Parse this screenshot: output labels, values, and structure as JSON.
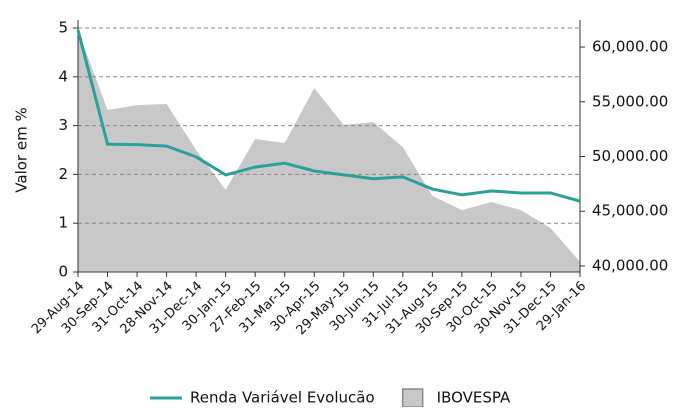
{
  "chart_data": {
    "type": "line-area",
    "y_label": "Valor em %",
    "categories": [
      "29-Aug-14",
      "30-Sep-14",
      "31-Oct-14",
      "28-Nov-14",
      "31-Dec-14",
      "30-Jan-15",
      "27-Feb-15",
      "31-Mar-15",
      "30-Apr-15",
      "29-May-15",
      "30-Jun-15",
      "31-Jul-15",
      "31-Aug-15",
      "30-Sep-15",
      "30-Oct-15",
      "30-Nov-15",
      "31-Dec-15",
      "29-Jan-16"
    ],
    "series": [
      {
        "name": "Renda Variável Evolucão",
        "color": "#2aa198",
        "kind": "line",
        "values": [
          4.96,
          2.62,
          2.61,
          2.58,
          2.36,
          1.99,
          2.15,
          2.23,
          2.07,
          1.99,
          1.91,
          1.95,
          1.7,
          1.58,
          1.66,
          1.62,
          1.62,
          1.45
        ]
      },
      {
        "name": "IBOVESPA",
        "color": "#c8c8c8",
        "kind": "area",
        "axis": "y2",
        "values": [
          61550,
          54250,
          54700,
          54800,
          50600,
          46950,
          51600,
          51230,
          56250,
          52880,
          53150,
          50870,
          46400,
          45100,
          45850,
          45100,
          43470,
          40370
        ]
      }
    ],
    "ylim": [
      0,
      5
    ],
    "yticks": [
      0,
      1,
      2,
      3,
      4,
      5
    ],
    "y2lim": [
      39450,
      61740
    ],
    "y2ticks": [
      {
        "value": 40000,
        "label": "40,000.00"
      },
      {
        "value": 45000,
        "label": "45,000.00"
      },
      {
        "value": 50000,
        "label": "50,000.00"
      },
      {
        "value": 55000,
        "label": "55,000.00"
      },
      {
        "value": 60000,
        "label": "60,000.00"
      }
    ],
    "grid": true
  }
}
